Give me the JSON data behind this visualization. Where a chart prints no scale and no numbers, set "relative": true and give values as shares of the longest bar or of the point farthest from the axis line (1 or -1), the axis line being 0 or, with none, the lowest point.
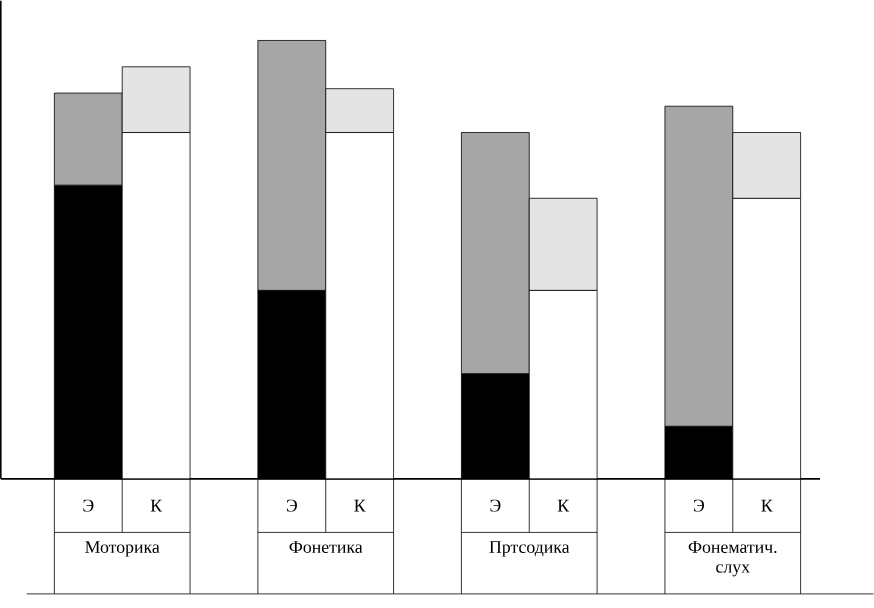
{
  "chart_data": {
    "type": "bar",
    "stacked": true,
    "relative": true,
    "categories": [
      "Э",
      "К",
      "Э",
      "К",
      "Э",
      "К",
      "Э",
      "К"
    ],
    "series": [
      {
        "color": "#000000",
        "values": [
          0.67,
          null,
          0.43,
          null,
          0.24,
          null,
          0.12,
          null
        ]
      },
      {
        "color": "#a6a6a6",
        "values": [
          0.21,
          null,
          0.57,
          null,
          0.55,
          null,
          0.73,
          null
        ]
      },
      {
        "color": "#ffffff",
        "values": [
          null,
          0.79,
          null,
          0.79,
          null,
          0.43,
          null,
          0.64
        ]
      },
      {
        "color": "#e4e4e4",
        "values": [
          null,
          0.15,
          null,
          0.1,
          null,
          0.21,
          null,
          0.15
        ]
      }
    ],
    "annotations": [
      "Моторика",
      "Фонетика",
      "Пртсодика",
      "Фонематич. слух"
    ]
  }
}
